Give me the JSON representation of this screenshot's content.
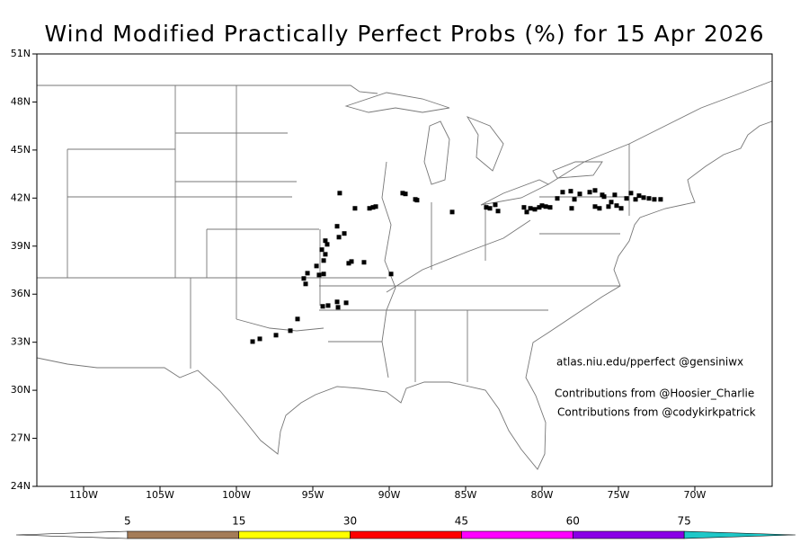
{
  "chart_data": {
    "type": "scatter",
    "title": "Wind Modified Practically Perfect Probs (%) for 15 Apr 2026",
    "xlim": [
      -113.06,
      -64.94
    ],
    "ylim": [
      24,
      51
    ],
    "xticks": [
      {
        "value": -110,
        "label": "110W"
      },
      {
        "value": -105,
        "label": "105W"
      },
      {
        "value": -100,
        "label": "100W"
      },
      {
        "value": -95,
        "label": "95W"
      },
      {
        "value": -90,
        "label": "90W"
      },
      {
        "value": -85,
        "label": "85W"
      },
      {
        "value": -80,
        "label": "80W"
      },
      {
        "value": -75,
        "label": "75W"
      },
      {
        "value": -70,
        "label": "70W"
      }
    ],
    "yticks": [
      {
        "value": 24,
        "label": "24N"
      },
      {
        "value": 27,
        "label": "27N"
      },
      {
        "value": 30,
        "label": "30N"
      },
      {
        "value": 33,
        "label": "33N"
      },
      {
        "value": 36,
        "label": "36N"
      },
      {
        "value": 39,
        "label": "39N"
      },
      {
        "value": 42,
        "label": "42N"
      },
      {
        "value": 45,
        "label": "45N"
      },
      {
        "value": 48,
        "label": "48N"
      },
      {
        "value": 51,
        "label": "51N"
      }
    ],
    "marker_color": "#000000",
    "x": [
      -93.24,
      -92.24,
      -91.29,
      -91.06,
      -90.88,
      -89.12,
      -88.94,
      -88.29,
      -88.18,
      -85.88,
      -93.41,
      -92.94,
      -93.29,
      -94.18,
      -94.06,
      -94.41,
      -94.18,
      -94.29,
      -94.76,
      -94.59,
      -94.29,
      -95.35,
      -95.59,
      -95.47,
      -92.47,
      -92.65,
      -91.65,
      -89.88,
      -94.35,
      -94.0,
      -93.41,
      -92.82,
      -93.35,
      -96.0,
      -96.47,
      -97.41,
      -98.47,
      -98.94,
      -83.65,
      -83.41,
      -83.06,
      -82.88,
      -81.18,
      -81.0,
      -80.76,
      -80.47,
      -80.18,
      -80.0,
      -79.76,
      -79.47,
      -79.0,
      -78.65,
      -78.12,
      -77.88,
      -78.06,
      -77.53,
      -76.88,
      -76.53,
      -76.53,
      -76.24,
      -75.94,
      -75.47,
      -75.24,
      -75.12,
      -74.82,
      -74.47,
      -74.18,
      -73.88,
      -73.65,
      -73.35,
      -73.0,
      -72.65,
      -72.24,
      -76.06,
      -75.65
    ],
    "y": [
      42.31,
      41.36,
      41.36,
      41.42,
      41.47,
      42.31,
      42.26,
      41.92,
      41.87,
      41.13,
      40.24,
      39.79,
      39.56,
      39.34,
      39.11,
      38.78,
      38.49,
      38.1,
      37.76,
      37.2,
      37.26,
      37.31,
      36.98,
      36.64,
      38.04,
      37.93,
      37.99,
      37.26,
      35.24,
      35.29,
      35.52,
      35.46,
      35.18,
      34.45,
      33.72,
      33.44,
      33.21,
      33.04,
      41.42,
      41.36,
      41.58,
      41.19,
      41.42,
      41.13,
      41.36,
      41.3,
      41.42,
      41.53,
      41.47,
      41.42,
      41.98,
      42.37,
      42.43,
      41.92,
      41.36,
      42.26,
      42.37,
      42.48,
      41.47,
      41.36,
      42.09,
      41.75,
      42.2,
      41.53,
      41.36,
      41.98,
      42.31,
      41.92,
      42.15,
      42.03,
      41.98,
      41.92,
      41.92,
      42.2,
      41.47
    ],
    "annotations": [
      "atlas.niu.edu/pperfect @gensiniwx",
      "Contributions from @Hoosier_Charlie",
      "Contributions from @codykirkpatrick"
    ],
    "colorbar": {
      "levels": [
        5,
        15,
        30,
        45,
        60,
        75
      ],
      "colors": [
        "#ffffff",
        "#a47c58",
        "#ffff00",
        "#ff0000",
        "#ff00ff",
        "#8a00e6",
        "#1ec8c8"
      ]
    }
  }
}
